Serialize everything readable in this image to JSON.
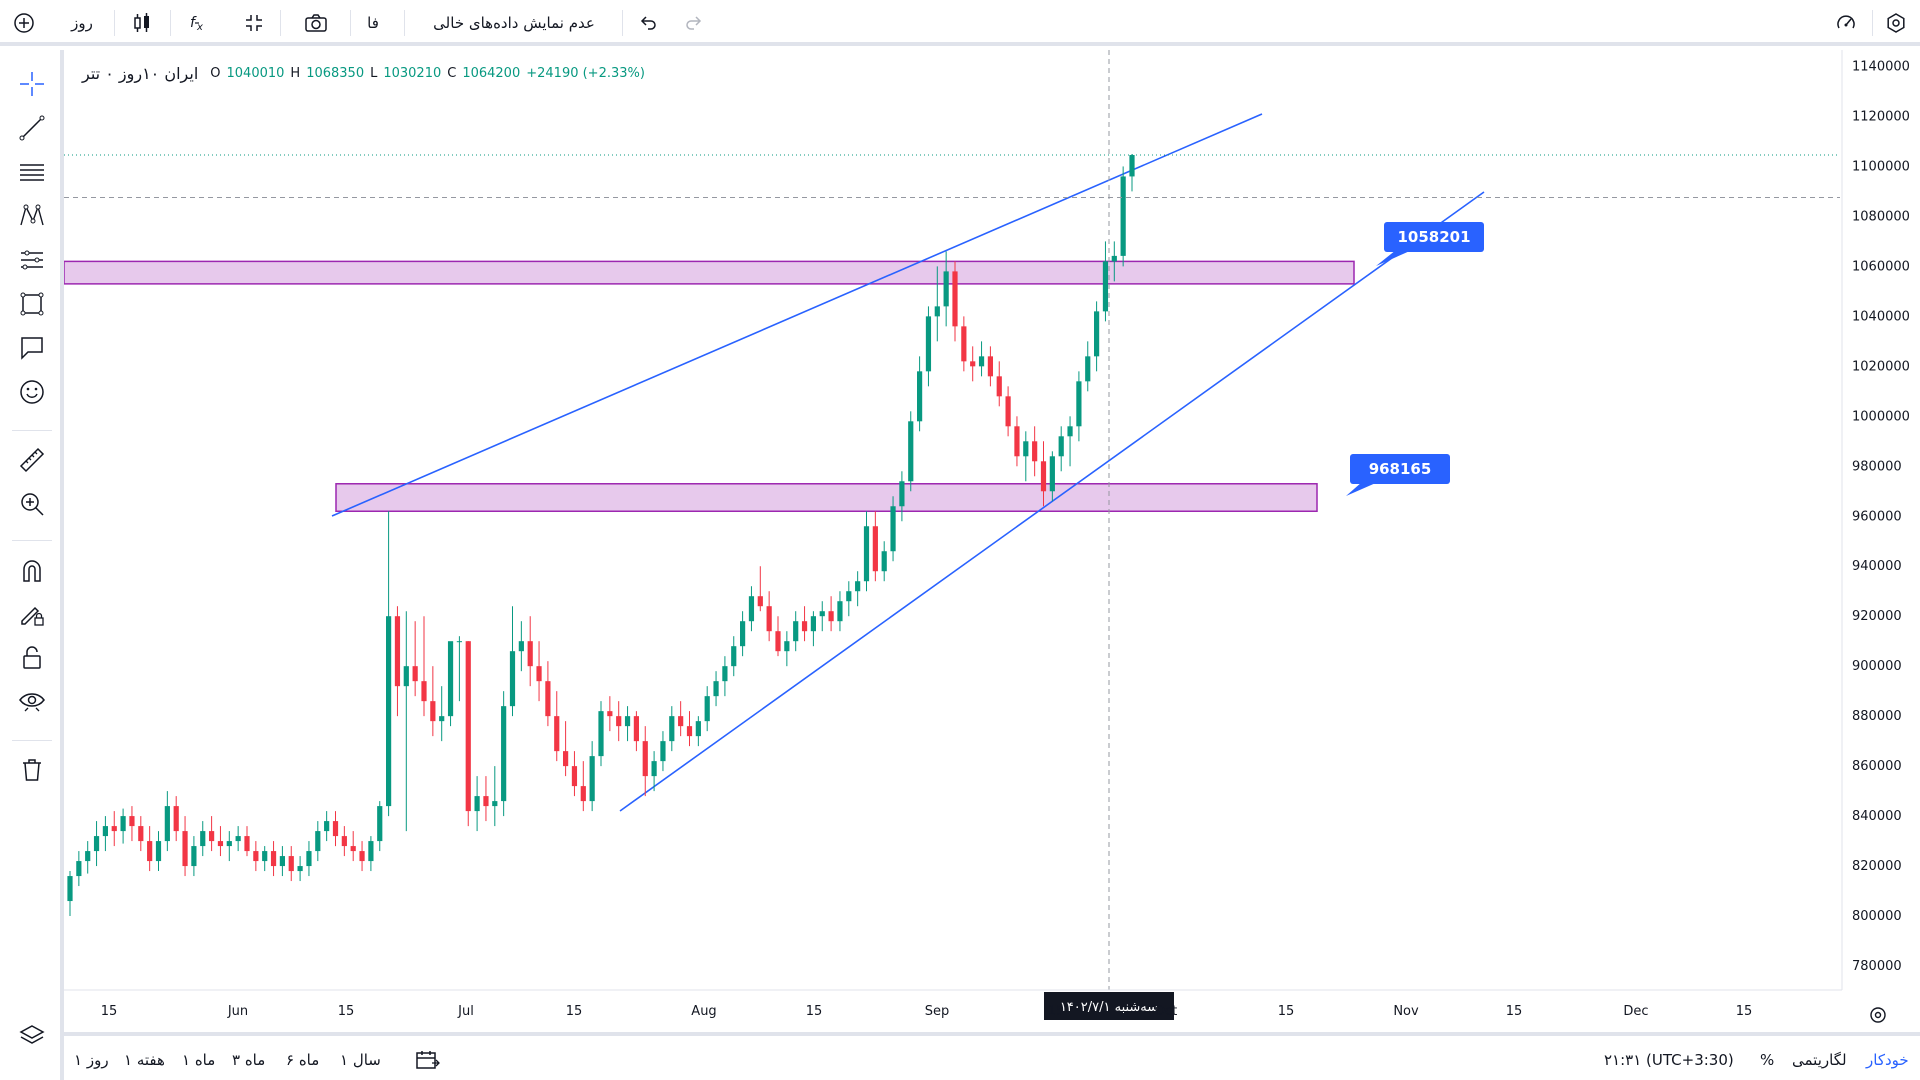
{
  "toolbar": {
    "timeframe": "روز",
    "language": "فا",
    "empty_data": "عدم نمایش داده‌های خالی",
    "icons": [
      "plus-circle-icon",
      "candles-icon",
      "fx-icon",
      "compare-icon",
      "camera-icon",
      "undo-icon",
      "redo-icon",
      "gauge-icon",
      "settings-icon"
    ]
  },
  "legend": {
    "symbol": "ایران ۱۰روز ۰ تتر",
    "o_label": "O",
    "o": "1040010",
    "h_label": "H",
    "h": "1068350",
    "l_label": "L",
    "l": "1030210",
    "c_label": "C",
    "c": "1064200",
    "change": "+24190 (+2.33%)"
  },
  "left_tools": [
    "crosshair-icon",
    "trendline-icon",
    "fib-icon",
    "pattern-icon",
    "pitchfork-icon",
    "rectangle-icon",
    "callout-icon",
    "emoji-icon",
    "ruler-icon",
    "zoom-icon",
    "magnet-icon",
    "lock-pen-icon",
    "lock-icon",
    "eye-icon",
    "trash-icon",
    "layers-icon"
  ],
  "chart_data": {
    "type": "candlestick",
    "y_ticks": [
      1140000,
      1120000,
      1100000,
      1080000,
      1060000,
      1040000,
      1020000,
      1000000,
      980000,
      960000,
      940000,
      920000,
      900000,
      880000,
      860000,
      840000,
      820000,
      800000,
      780000
    ],
    "x_ticks": [
      "15",
      "Jun",
      "15",
      "Jul",
      "15",
      "Aug",
      "15",
      "Sep",
      "15",
      "Oct",
      "15",
      "Nov",
      "15",
      "Dec",
      "15"
    ],
    "ylim": [
      772000,
      1145000
    ],
    "last_price": "1104570",
    "crosshair_price": "1087568",
    "crosshair_date": "سه‌شنبه ۱۴۰۲/۷/۱",
    "callouts": [
      "1058201",
      "968165"
    ],
    "zones": [
      [
        1053000,
        1062000
      ],
      [
        962000,
        973000
      ]
    ],
    "colors": {
      "up": "#089981",
      "down": "#f23645",
      "line": "#2962ff",
      "zone_fill": "#e7c9ec",
      "zone_border": "#9c27b0"
    },
    "candles": [
      [
        806000,
        818000,
        800000,
        816000
      ],
      [
        816000,
        826000,
        812000,
        822000
      ],
      [
        822000,
        830000,
        817000,
        826000
      ],
      [
        826000,
        838000,
        820000,
        832000
      ],
      [
        832000,
        840000,
        826000,
        836000
      ],
      [
        836000,
        842000,
        828000,
        834000
      ],
      [
        834000,
        843000,
        829000,
        840000
      ],
      [
        840000,
        844000,
        830000,
        836000
      ],
      [
        836000,
        840000,
        826000,
        830000
      ],
      [
        830000,
        836000,
        818000,
        822000
      ],
      [
        822000,
        834000,
        818000,
        830000
      ],
      [
        830000,
        850000,
        826000,
        844000
      ],
      [
        844000,
        848000,
        830000,
        834000
      ],
      [
        834000,
        840000,
        816000,
        820000
      ],
      [
        820000,
        832000,
        816000,
        828000
      ],
      [
        828000,
        838000,
        824000,
        834000
      ],
      [
        834000,
        840000,
        826000,
        830000
      ],
      [
        830000,
        836000,
        824000,
        828000
      ],
      [
        828000,
        834000,
        822000,
        830000
      ],
      [
        830000,
        836000,
        826000,
        832000
      ],
      [
        832000,
        836000,
        824000,
        826000
      ],
      [
        826000,
        830000,
        818000,
        822000
      ],
      [
        822000,
        828000,
        818000,
        826000
      ],
      [
        826000,
        830000,
        816000,
        820000
      ],
      [
        820000,
        828000,
        816000,
        824000
      ],
      [
        824000,
        828000,
        814000,
        818000
      ],
      [
        818000,
        824000,
        814000,
        820000
      ],
      [
        820000,
        830000,
        816000,
        826000
      ],
      [
        826000,
        838000,
        822000,
        834000
      ],
      [
        834000,
        842000,
        830000,
        838000
      ],
      [
        838000,
        842000,
        828000,
        832000
      ],
      [
        832000,
        836000,
        824000,
        828000
      ],
      [
        828000,
        834000,
        822000,
        826000
      ],
      [
        826000,
        830000,
        818000,
        822000
      ],
      [
        822000,
        832000,
        818000,
        830000
      ],
      [
        830000,
        846000,
        826000,
        844000
      ],
      [
        844000,
        962000,
        840000,
        920000
      ],
      [
        920000,
        924000,
        880000,
        892000
      ],
      [
        892000,
        922000,
        834000,
        900000
      ],
      [
        900000,
        918000,
        888000,
        894000
      ],
      [
        894000,
        920000,
        880000,
        886000
      ],
      [
        886000,
        900000,
        872000,
        878000
      ],
      [
        878000,
        892000,
        870000,
        880000
      ],
      [
        880000,
        908000,
        876000,
        910000
      ],
      [
        910000,
        912000,
        886000,
        910000
      ],
      [
        910000,
        910000,
        836000,
        842000
      ],
      [
        842000,
        856000,
        834000,
        848000
      ],
      [
        848000,
        856000,
        838000,
        844000
      ],
      [
        844000,
        860000,
        836000,
        846000
      ],
      [
        846000,
        890000,
        840000,
        884000
      ],
      [
        884000,
        924000,
        880000,
        906000
      ],
      [
        906000,
        918000,
        898000,
        910000
      ],
      [
        910000,
        920000,
        892000,
        900000
      ],
      [
        900000,
        910000,
        886000,
        894000
      ],
      [
        894000,
        902000,
        876000,
        880000
      ],
      [
        880000,
        890000,
        862000,
        866000
      ],
      [
        866000,
        878000,
        856000,
        860000
      ],
      [
        860000,
        866000,
        848000,
        852000
      ],
      [
        852000,
        862000,
        842000,
        846000
      ],
      [
        846000,
        870000,
        842000,
        864000
      ],
      [
        864000,
        886000,
        860000,
        882000
      ],
      [
        882000,
        888000,
        874000,
        880000
      ],
      [
        880000,
        886000,
        870000,
        876000
      ],
      [
        876000,
        884000,
        870000,
        880000
      ],
      [
        880000,
        882000,
        866000,
        870000
      ],
      [
        870000,
        876000,
        848000,
        856000
      ],
      [
        856000,
        866000,
        850000,
        862000
      ],
      [
        862000,
        874000,
        858000,
        870000
      ],
      [
        870000,
        884000,
        866000,
        880000
      ],
      [
        880000,
        886000,
        872000,
        876000
      ],
      [
        876000,
        882000,
        868000,
        872000
      ],
      [
        872000,
        880000,
        868000,
        878000
      ],
      [
        878000,
        892000,
        874000,
        888000
      ],
      [
        888000,
        898000,
        884000,
        894000
      ],
      [
        894000,
        904000,
        888000,
        900000
      ],
      [
        900000,
        912000,
        896000,
        908000
      ],
      [
        908000,
        922000,
        904000,
        918000
      ],
      [
        918000,
        932000,
        914000,
        928000
      ],
      [
        928000,
        940000,
        922000,
        924000
      ],
      [
        924000,
        930000,
        910000,
        914000
      ],
      [
        914000,
        920000,
        904000,
        906000
      ],
      [
        906000,
        914000,
        900000,
        910000
      ],
      [
        910000,
        922000,
        906000,
        918000
      ],
      [
        918000,
        924000,
        910000,
        914000
      ],
      [
        914000,
        922000,
        908000,
        920000
      ],
      [
        920000,
        926000,
        914000,
        922000
      ],
      [
        922000,
        928000,
        914000,
        918000
      ],
      [
        918000,
        930000,
        914000,
        926000
      ],
      [
        926000,
        934000,
        920000,
        930000
      ],
      [
        930000,
        938000,
        924000,
        934000
      ],
      [
        934000,
        962000,
        930000,
        956000
      ],
      [
        956000,
        962000,
        934000,
        938000
      ],
      [
        938000,
        950000,
        934000,
        946000
      ],
      [
        946000,
        968000,
        942000,
        964000
      ],
      [
        964000,
        978000,
        958000,
        974000
      ],
      [
        974000,
        1002000,
        970000,
        998000
      ],
      [
        998000,
        1024000,
        994000,
        1018000
      ],
      [
        1018000,
        1044000,
        1012000,
        1040000
      ],
      [
        1040000,
        1060000,
        1030000,
        1044000
      ],
      [
        1044000,
        1066000,
        1036000,
        1058000
      ],
      [
        1058000,
        1062000,
        1030000,
        1036000
      ],
      [
        1036000,
        1040000,
        1018000,
        1022000
      ],
      [
        1022000,
        1028000,
        1014000,
        1020000
      ],
      [
        1020000,
        1030000,
        1016000,
        1024000
      ],
      [
        1024000,
        1028000,
        1012000,
        1016000
      ],
      [
        1016000,
        1022000,
        1004000,
        1008000
      ],
      [
        1008000,
        1012000,
        992000,
        996000
      ],
      [
        996000,
        1000000,
        980000,
        984000
      ],
      [
        984000,
        994000,
        974000,
        990000
      ],
      [
        990000,
        996000,
        976000,
        982000
      ],
      [
        982000,
        990000,
        964000,
        970000
      ],
      [
        970000,
        986000,
        966000,
        984000
      ],
      [
        984000,
        996000,
        978000,
        992000
      ],
      [
        992000,
        1000000,
        980000,
        996000
      ],
      [
        996000,
        1018000,
        990000,
        1014000
      ],
      [
        1014000,
        1030000,
        1010000,
        1024000
      ],
      [
        1024000,
        1046000,
        1018000,
        1042000
      ],
      [
        1042000,
        1070000,
        1038000,
        1062000
      ],
      [
        1062000,
        1070000,
        1054000,
        1064200
      ],
      [
        1064200,
        1100000,
        1060000,
        1096000
      ],
      [
        1096000,
        1105000,
        1090000,
        1104570
      ]
    ]
  }
}
